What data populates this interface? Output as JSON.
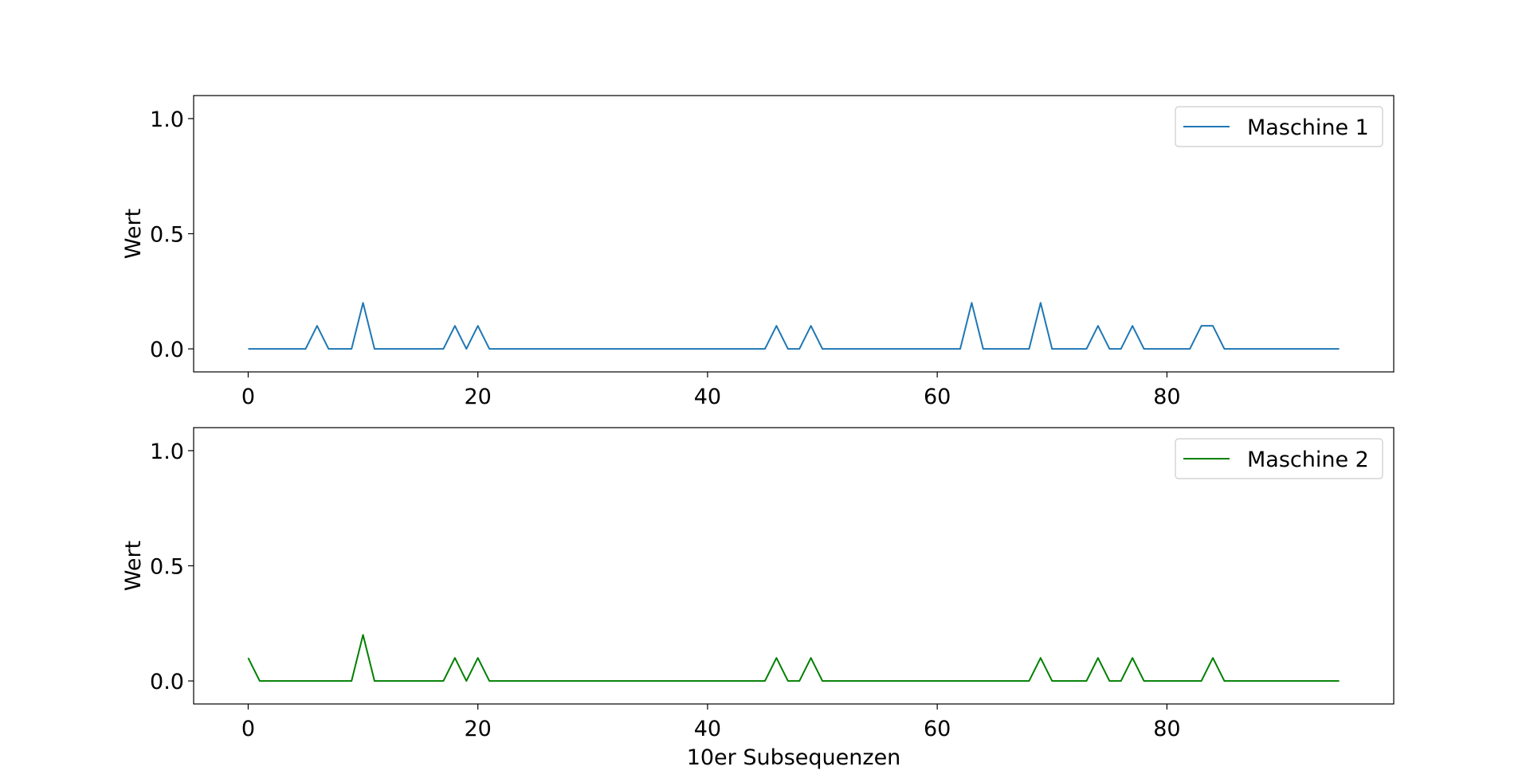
{
  "chart_data": [
    {
      "type": "line",
      "xlabel": "",
      "ylabel": "Wert",
      "xlim": [
        -4.75,
        99.75
      ],
      "ylim": [
        -0.1,
        1.1
      ],
      "xticks": [
        "0",
        "20",
        "40",
        "60",
        "80"
      ],
      "yticks": [
        "0.0",
        "0.5",
        "1.0"
      ],
      "legend_position": "top-right",
      "grid": false,
      "series": [
        {
          "name": "Maschine 1",
          "color": "#1f77b4",
          "x": [
            0,
            1,
            2,
            3,
            4,
            5,
            6,
            7,
            8,
            9,
            10,
            11,
            12,
            13,
            14,
            15,
            16,
            17,
            18,
            19,
            20,
            21,
            22,
            23,
            24,
            25,
            26,
            27,
            28,
            29,
            30,
            31,
            32,
            33,
            34,
            35,
            36,
            37,
            38,
            39,
            40,
            41,
            42,
            43,
            44,
            45,
            46,
            47,
            48,
            49,
            50,
            51,
            52,
            53,
            54,
            55,
            56,
            57,
            58,
            59,
            60,
            61,
            62,
            63,
            64,
            65,
            66,
            67,
            68,
            69,
            70,
            71,
            72,
            73,
            74,
            75,
            76,
            77,
            78,
            79,
            80,
            81,
            82,
            83,
            84,
            85,
            86,
            87,
            88,
            89,
            90,
            91,
            92,
            93,
            94,
            95
          ],
          "values": [
            0,
            0,
            0,
            0,
            0,
            0,
            0.1,
            0,
            0,
            0,
            0.2,
            0,
            0,
            0,
            0,
            0,
            0,
            0,
            0.1,
            0,
            0.1,
            0,
            0,
            0,
            0,
            0,
            0,
            0,
            0,
            0,
            0,
            0,
            0,
            0,
            0,
            0,
            0,
            0,
            0,
            0,
            0,
            0,
            0,
            0,
            0,
            0,
            0.1,
            0,
            0,
            0.1,
            0,
            0,
            0,
            0,
            0,
            0,
            0,
            0,
            0,
            0,
            0,
            0,
            0,
            0.2,
            0,
            0,
            0,
            0,
            0,
            0.2,
            0,
            0,
            0,
            0,
            0.1,
            0,
            0,
            0.1,
            0,
            0,
            0,
            0,
            0,
            0.1,
            0.1,
            0,
            0,
            0,
            0,
            0,
            0,
            0,
            0,
            0,
            0,
            0
          ]
        }
      ]
    },
    {
      "type": "line",
      "xlabel": "10er Subsequenzen",
      "ylabel": "Wert",
      "xlim": [
        -4.75,
        99.75
      ],
      "ylim": [
        -0.1,
        1.1
      ],
      "xticks": [
        "0",
        "20",
        "40",
        "60",
        "80"
      ],
      "yticks": [
        "0.0",
        "0.5",
        "1.0"
      ],
      "legend_position": "top-right",
      "grid": false,
      "series": [
        {
          "name": "Maschine 2",
          "color": "#008000",
          "x": [
            0,
            1,
            2,
            3,
            4,
            5,
            6,
            7,
            8,
            9,
            10,
            11,
            12,
            13,
            14,
            15,
            16,
            17,
            18,
            19,
            20,
            21,
            22,
            23,
            24,
            25,
            26,
            27,
            28,
            29,
            30,
            31,
            32,
            33,
            34,
            35,
            36,
            37,
            38,
            39,
            40,
            41,
            42,
            43,
            44,
            45,
            46,
            47,
            48,
            49,
            50,
            51,
            52,
            53,
            54,
            55,
            56,
            57,
            58,
            59,
            60,
            61,
            62,
            63,
            64,
            65,
            66,
            67,
            68,
            69,
            70,
            71,
            72,
            73,
            74,
            75,
            76,
            77,
            78,
            79,
            80,
            81,
            82,
            83,
            84,
            85,
            86,
            87,
            88,
            89,
            90,
            91,
            92,
            93,
            94,
            95
          ],
          "values": [
            0.1,
            0,
            0,
            0,
            0,
            0,
            0,
            0,
            0,
            0,
            0.2,
            0,
            0,
            0,
            0,
            0,
            0,
            0,
            0.1,
            0,
            0.1,
            0,
            0,
            0,
            0,
            0,
            0,
            0,
            0,
            0,
            0,
            0,
            0,
            0,
            0,
            0,
            0,
            0,
            0,
            0,
            0,
            0,
            0,
            0,
            0,
            0,
            0.1,
            0,
            0,
            0.1,
            0,
            0,
            0,
            0,
            0,
            0,
            0,
            0,
            0,
            0,
            0,
            0,
            0,
            0,
            0,
            0,
            0,
            0,
            0,
            0.1,
            0,
            0,
            0,
            0,
            0.1,
            0,
            0,
            0.1,
            0,
            0,
            0,
            0,
            0,
            0,
            0.1,
            0,
            0,
            0,
            0,
            0,
            0,
            0,
            0,
            0,
            0,
            0
          ]
        }
      ]
    }
  ]
}
